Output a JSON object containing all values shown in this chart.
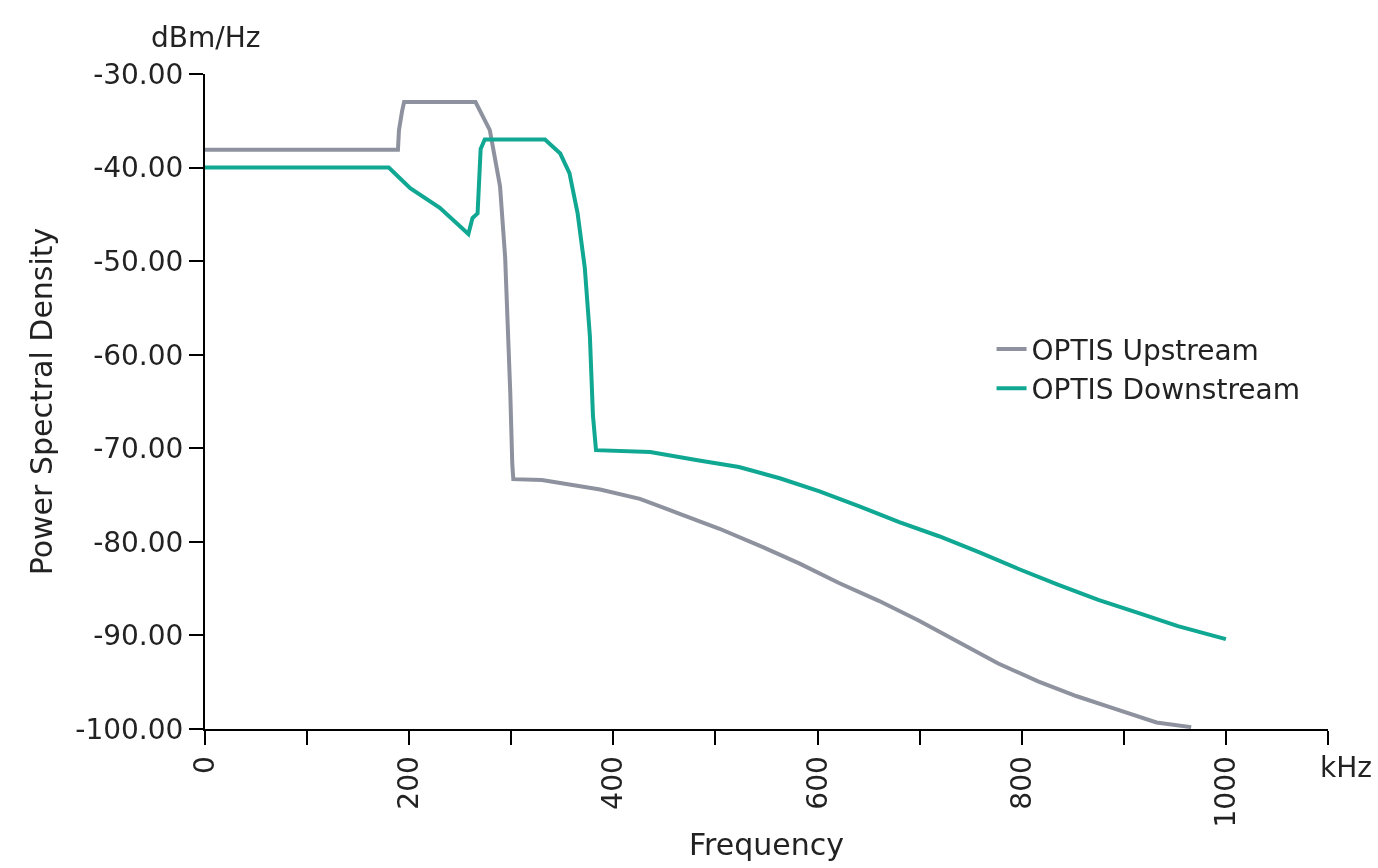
{
  "chart_data": {
    "type": "line",
    "xlabel": "Frequency",
    "ylabel": "Power Spectral Density",
    "annotations": [
      "dBm/Hz",
      "kHz"
    ],
    "xlim": [
      0,
      1100
    ],
    "ylim": [
      -100,
      -30
    ],
    "xticks": [
      0,
      {
        "value": 100,
        "label": null
      },
      200,
      {
        "value": 300,
        "label": null
      },
      400,
      {
        "value": 500,
        "label": null
      },
      600,
      {
        "value": 700,
        "label": null
      },
      800,
      {
        "value": 900,
        "label": null
      },
      1000,
      {
        "value": 1100,
        "label": null
      }
    ],
    "yticks": [
      {
        "value": -100,
        "label": "-100.00"
      },
      {
        "value": -90,
        "label": "-90.00"
      },
      {
        "value": -80,
        "label": "-80.00"
      },
      {
        "value": -70,
        "label": "-70.00"
      },
      {
        "value": -60,
        "label": "-60.00"
      },
      {
        "value": -50,
        "label": "-50.00"
      },
      {
        "value": -40,
        "label": "-40.00"
      },
      {
        "value": -30,
        "label": "-30.00"
      }
    ],
    "legend": "right",
    "marker": "none",
    "line_style": "solid",
    "series": [
      {
        "name": "OPTIS Upstream",
        "color": "#8e929e",
        "x": [
          0,
          189,
          190,
          193,
          195,
          265,
          279,
          289,
          294,
          299,
          301,
          302,
          330,
          387,
          426,
          465,
          504,
          543,
          582,
          621,
          660,
          699,
          738,
          777,
          816,
          854,
          893,
          932,
          966
        ],
        "values": [
          -38.1,
          -38.1,
          -36,
          -34,
          -33,
          -33,
          -36,
          -42,
          -49.6,
          -64,
          -71.7,
          -73.3,
          -73.4,
          -74.4,
          -75.4,
          -77,
          -78.6,
          -80.4,
          -82.3,
          -84.4,
          -86.3,
          -88.4,
          -90.7,
          -93,
          -94.9,
          -96.5,
          -97.9,
          -99.3,
          -99.8
        ]
      },
      {
        "name": "OPTIS Downstream",
        "color": "#10a893",
        "x": [
          0,
          180,
          201,
          230,
          258,
          262,
          267,
          270,
          274,
          333,
          348,
          357,
          365,
          372,
          377,
          380,
          383,
          436,
          484,
          523,
          563,
          602,
          641,
          680,
          719,
          758,
          797,
          836,
          875,
          914,
          953,
          1000
        ],
        "values": [
          -40,
          -40,
          -42.2,
          -44.3,
          -47.1,
          -45.4,
          -44.9,
          -38,
          -37,
          -37,
          -38.5,
          -40.6,
          -44.9,
          -50.7,
          -58,
          -66.5,
          -70.2,
          -70.4,
          -71.3,
          -72,
          -73.2,
          -74.6,
          -76.2,
          -77.9,
          -79.4,
          -81.1,
          -82.9,
          -84.6,
          -86.2,
          -87.6,
          -89,
          -90.4
        ]
      }
    ]
  }
}
